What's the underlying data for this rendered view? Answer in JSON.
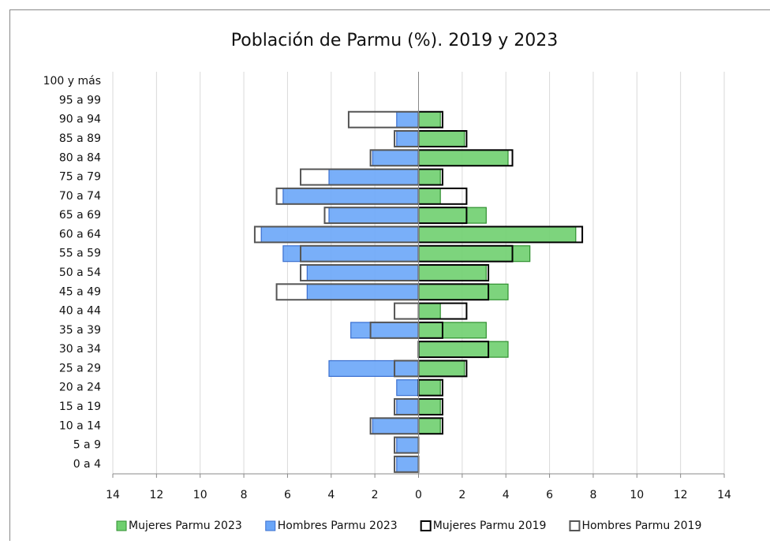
{
  "chart_data": {
    "type": "pyramid",
    "title": "Población de Parmu (%). 2019 y 2023",
    "categories": [
      "100 y más",
      "95 a 99",
      "90 a 94",
      "85 a 89",
      "80 a 84",
      "75 a 79",
      "70 a 74",
      "65 a 69",
      "60 a 64",
      "55 a 59",
      "50 a 54",
      "45 a 49",
      "40 a 44",
      "35 a 39",
      "30 a 34",
      "25 a 29",
      "20 a 24",
      "15 a 19",
      "10 a 14",
      "5 a 9",
      "0 a 4"
    ],
    "series": [
      {
        "name": "Mujeres Parmu 2023",
        "color": "#6fcf6f",
        "filled": true,
        "values": [
          0,
          0,
          1,
          2.1,
          4.1,
          1,
          1,
          3.1,
          7.2,
          5.1,
          3.1,
          4.1,
          1,
          3.1,
          4.1,
          2.1,
          1,
          1,
          1,
          0,
          0
        ]
      },
      {
        "name": "Hombres Parmu 2023",
        "color": "#6aa6f8",
        "filled": true,
        "values": [
          0,
          0,
          -1,
          -1,
          -2.1,
          -4.1,
          -6.2,
          -4.1,
          -7.2,
          -6.2,
          -5.1,
          -5.1,
          0,
          -3.1,
          0,
          -4.1,
          -1,
          -1,
          -2.1,
          -1,
          -1
        ]
      },
      {
        "name": "Mujeres Parmu 2019",
        "color": "#000000",
        "filled": false,
        "values": [
          0,
          0,
          1.1,
          2.2,
          4.3,
          1.1,
          2.2,
          2.2,
          7.5,
          4.3,
          3.2,
          3.2,
          2.2,
          1.1,
          3.2,
          2.2,
          1.1,
          1.1,
          1.1,
          0,
          0
        ]
      },
      {
        "name": "Hombres Parmu 2019",
        "color": "#555555",
        "filled": false,
        "values": [
          0,
          0,
          -3.2,
          -1.1,
          -2.2,
          -5.4,
          -6.5,
          -4.3,
          -7.5,
          -5.4,
          -5.4,
          -6.5,
          -1.1,
          -2.2,
          0,
          -1.1,
          0,
          -1.1,
          -2.2,
          -1.1,
          -1.1
        ]
      }
    ],
    "xlim": [
      -14,
      14
    ],
    "xticks": [
      {
        "value": -14,
        "label": "14"
      },
      {
        "value": -12,
        "label": "12"
      },
      {
        "value": -10,
        "label": "10"
      },
      {
        "value": -8,
        "label": "8"
      },
      {
        "value": -6,
        "label": "6"
      },
      {
        "value": -4,
        "label": "4"
      },
      {
        "value": -2,
        "label": "2"
      },
      0,
      2,
      4,
      6,
      8,
      10,
      12,
      14
    ],
    "grid": true,
    "legend": "bottom"
  }
}
